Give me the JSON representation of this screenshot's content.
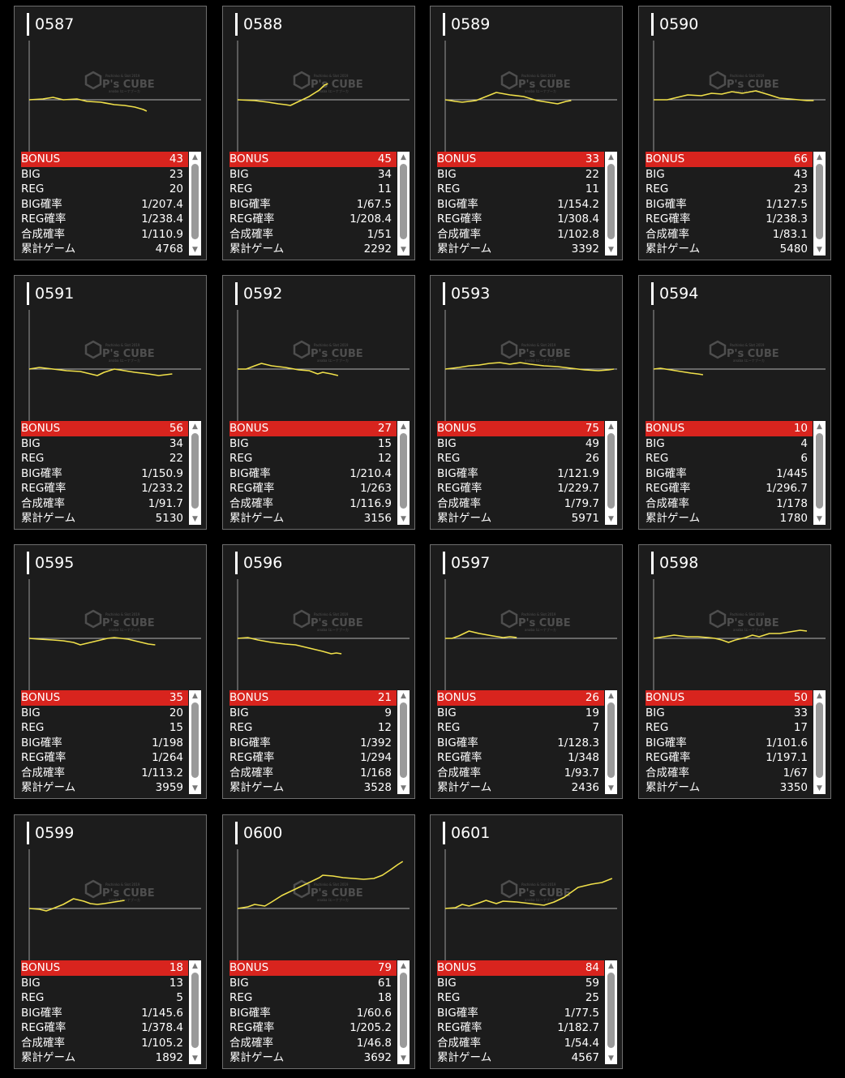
{
  "labels": {
    "bonus": "BONUS",
    "big": "BIG",
    "reg": "REG",
    "big_rate": "BIG確率",
    "reg_rate": "REG確率",
    "total_rate": "合成確率",
    "games": "累計ゲーム"
  },
  "watermark": {
    "brand": "P's CUBE",
    "top_line": "Pachinko & Slot 2019",
    "sub_line": "anaba Iエーナブーカ"
  },
  "colors": {
    "graph_line": "#f0e04a",
    "bonus_bar": "#d8241e",
    "card_bg": "#1c1c1c",
    "page_bg": "#000000"
  },
  "machines": [
    {
      "id": "0587",
      "bonus": "43",
      "big": "23",
      "reg": "20",
      "big_rate": "1/207.4",
      "reg_rate": "1/238.4",
      "total_rate": "1/110.9",
      "games": "4768"
    },
    {
      "id": "0588",
      "bonus": "45",
      "big": "34",
      "reg": "11",
      "big_rate": "1/67.5",
      "reg_rate": "1/208.4",
      "total_rate": "1/51",
      "games": "2292"
    },
    {
      "id": "0589",
      "bonus": "33",
      "big": "22",
      "reg": "11",
      "big_rate": "1/154.2",
      "reg_rate": "1/308.4",
      "total_rate": "1/102.8",
      "games": "3392"
    },
    {
      "id": "0590",
      "bonus": "66",
      "big": "43",
      "reg": "23",
      "big_rate": "1/127.5",
      "reg_rate": "1/238.3",
      "total_rate": "1/83.1",
      "games": "5480"
    },
    {
      "id": "0591",
      "bonus": "56",
      "big": "34",
      "reg": "22",
      "big_rate": "1/150.9",
      "reg_rate": "1/233.2",
      "total_rate": "1/91.7",
      "games": "5130"
    },
    {
      "id": "0592",
      "bonus": "27",
      "big": "15",
      "reg": "12",
      "big_rate": "1/210.4",
      "reg_rate": "1/263",
      "total_rate": "1/116.9",
      "games": "3156"
    },
    {
      "id": "0593",
      "bonus": "75",
      "big": "49",
      "reg": "26",
      "big_rate": "1/121.9",
      "reg_rate": "1/229.7",
      "total_rate": "1/79.7",
      "games": "5971"
    },
    {
      "id": "0594",
      "bonus": "10",
      "big": "4",
      "reg": "6",
      "big_rate": "1/445",
      "reg_rate": "1/296.7",
      "total_rate": "1/178",
      "games": "1780"
    },
    {
      "id": "0595",
      "bonus": "35",
      "big": "20",
      "reg": "15",
      "big_rate": "1/198",
      "reg_rate": "1/264",
      "total_rate": "1/113.2",
      "games": "3959"
    },
    {
      "id": "0596",
      "bonus": "21",
      "big": "9",
      "reg": "12",
      "big_rate": "1/392",
      "reg_rate": "1/294",
      "total_rate": "1/168",
      "games": "3528"
    },
    {
      "id": "0597",
      "bonus": "26",
      "big": "19",
      "reg": "7",
      "big_rate": "1/128.3",
      "reg_rate": "1/348",
      "total_rate": "1/93.7",
      "games": "2436"
    },
    {
      "id": "0598",
      "bonus": "50",
      "big": "33",
      "reg": "17",
      "big_rate": "1/101.6",
      "reg_rate": "1/197.1",
      "total_rate": "1/67",
      "games": "3350"
    },
    {
      "id": "0599",
      "bonus": "18",
      "big": "13",
      "reg": "5",
      "big_rate": "1/145.6",
      "reg_rate": "1/378.4",
      "total_rate": "1/105.2",
      "games": "1892"
    },
    {
      "id": "0600",
      "bonus": "79",
      "big": "61",
      "reg": "18",
      "big_rate": "1/60.6",
      "reg_rate": "1/205.2",
      "total_rate": "1/46.8",
      "games": "3692"
    },
    {
      "id": "0601",
      "bonus": "84",
      "big": "59",
      "reg": "25",
      "big_rate": "1/77.5",
      "reg_rate": "1/182.7",
      "total_rate": "1/54.4",
      "games": "4567"
    }
  ]
}
